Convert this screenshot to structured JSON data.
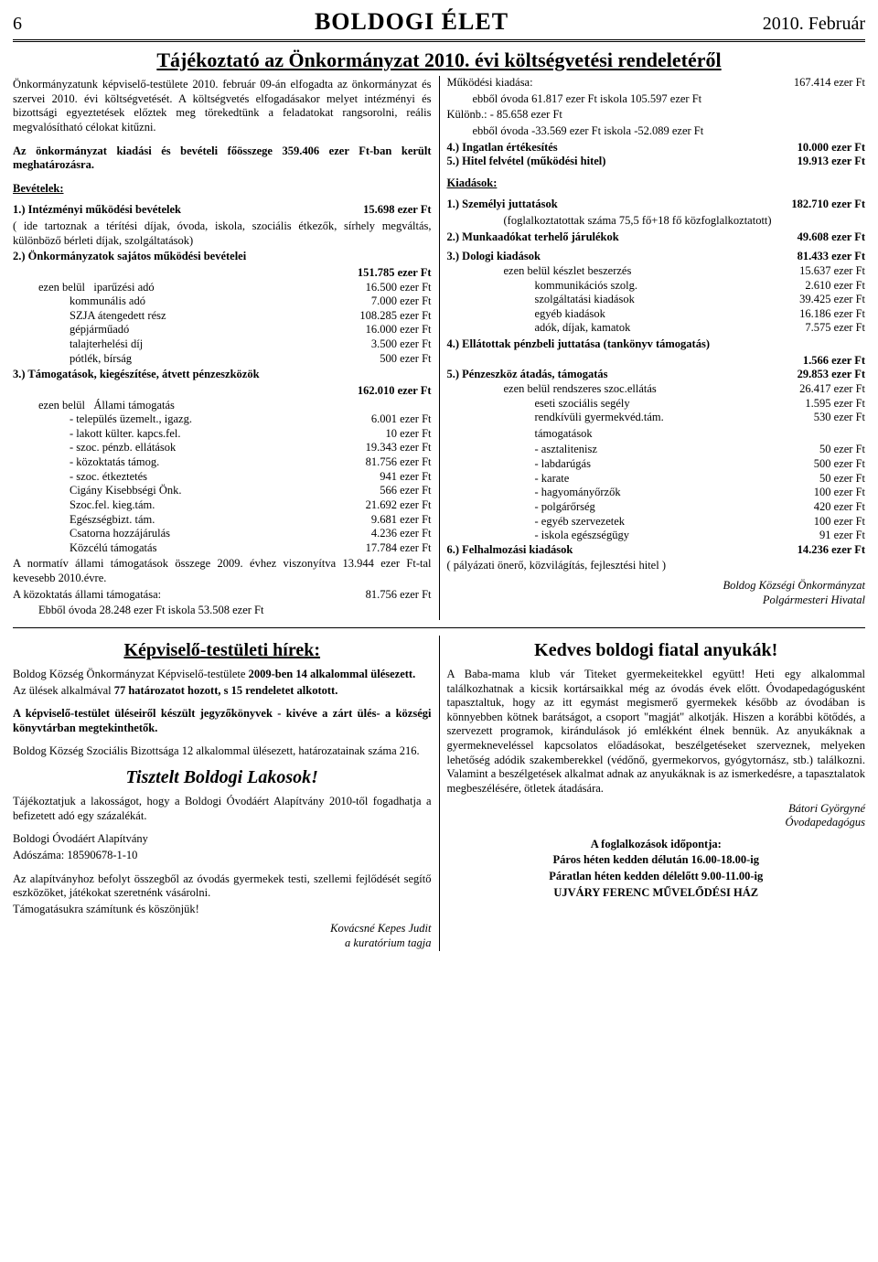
{
  "masthead": {
    "page_number": "6",
    "title": "BOLDOGI ÉLET",
    "date": "2010. Február"
  },
  "article1": {
    "title": "Tájékoztató az Önkormányzat 2010. évi költségvetési rendeletéről",
    "left": {
      "intro": "Önkormányzatunk képviselő-testülete 2010. február 09-án elfogadta az önkormányzat és szervei 2010. évi költségvetését. A költségvetés elfogadásakor melyet intézményi és bizottsági egyeztetések előztek meg törekedtünk a feladatokat rangsorolni, reális megvalósítható célokat kitűzni.",
      "summary": "Az önkormányzat kiadási és bevételi főösszege 359.406 ezer Ft-ban került meghatározásra.",
      "bevetelek_label": "Bevételek:",
      "s1_label": "1.) Intézményi működési bevételek",
      "s1_val": "15.698 ezer Ft",
      "s1_note": "( ide tartoznak a térítési díjak, óvoda, iskola, szociális étkezők, sírhely megváltás, különböző bérleti díjak, szolgáltatások)",
      "s2_label": "2.) Önkormányzatok sajátos működési bevételei",
      "s2_val": "151.785 ezer Ft",
      "s2_ezb": "ezen belül",
      "s2_items": [
        {
          "label": "iparűzési adó",
          "val": "16.500 ezer Ft"
        },
        {
          "label": "kommunális adó",
          "val": "7.000 ezer Ft"
        },
        {
          "label": "SZJA átengedett rész",
          "val": "108.285 ezer Ft"
        },
        {
          "label": "gépjárműadó",
          "val": "16.000 ezer Ft"
        },
        {
          "label": "talajterhelési díj",
          "val": "3.500 ezer Ft"
        },
        {
          "label": "pótlék, bírság",
          "val": "500 ezer Ft"
        }
      ],
      "s3_label": "3.) Támogatások, kiegészítése, átvett pénzeszközök",
      "s3_val": "162.010 ezer Ft",
      "s3_ezb": "ezen belül",
      "s3_allami": "Állami támogatás",
      "s3_items": [
        {
          "label": "- település üzemelt., igazg.",
          "val": "6.001 ezer Ft"
        },
        {
          "label": "- lakott külter. kapcs.fel.",
          "val": "10 ezer Ft"
        },
        {
          "label": "- szoc. pénzb. ellátások",
          "val": "19.343 ezer Ft"
        },
        {
          "label": "- közoktatás támog.",
          "val": "81.756 ezer Ft"
        },
        {
          "label": "- szoc. étkeztetés",
          "val": "941 ezer Ft"
        }
      ],
      "s3_items2": [
        {
          "label": "Cigány Kisebbségi Önk.",
          "val": "566 ezer Ft"
        },
        {
          "label": "Szoc.fel. kieg.tám.",
          "val": "21.692 ezer Ft"
        },
        {
          "label": "Egészségbizt. tám.",
          "val": "9.681 ezer Ft"
        },
        {
          "label": "Csatorna hozzájárulás",
          "val": "4.236 ezer Ft"
        },
        {
          "label": "Közcélú támogatás",
          "val": "17.784 ezer Ft"
        }
      ],
      "tail1": "A normatív állami támogatások összege 2009. évhez viszonyítva 13.944 ezer Ft-tal kevesebb 2010.évre.",
      "tail2_label": "A közoktatás állami támogatása:",
      "tail2_val": "81.756 ezer Ft",
      "tail3": "Ebből óvoda   28.248 ezer Ft      iskola   53.508 ezer Ft"
    },
    "right": {
      "m_label": "Működési kiadása:",
      "m_val": "167.414 ezer Ft",
      "m_line2": "ebből óvoda   61.817 ezer Ft      iskola 105.597 ezer Ft",
      "k_label": "Különb.: - 85.658 ezer Ft",
      "k_line2": "ebből   óvoda -33.569 ezer Ft    iskola  -52.089 ezer Ft",
      "s4_label": "4.) Ingatlan értékesítés",
      "s4_val": "10.000 ezer Ft",
      "s5_label": "5.) Hitel felvétel (működési hitel)",
      "s5_val": "19.913 ezer Ft",
      "kiadasok_label": "Kiadások:",
      "k1_label": "1.) Személyi juttatások",
      "k1_val": "182.710 ezer Ft",
      "k1_note": "(foglalkoztatottak száma 75,5 fő+18 fő közfoglalkoztatott)",
      "k2_label": "2.) Munkaadókat terhelő járulékok",
      "k2_val": "49.608 ezer Ft",
      "k3_label": "3.) Dologi kiadások",
      "k3_val": "81.433 ezer Ft",
      "k3_items": [
        {
          "label": "ezen belül  készlet beszerzés",
          "val": "15.637 ezer Ft"
        },
        {
          "label": "kommunikációs szolg.",
          "val": "2.610 ezer Ft"
        },
        {
          "label": "szolgáltatási kiadások",
          "val": "39.425 ezer Ft"
        },
        {
          "label": "egyéb kiadások",
          "val": "16.186 ezer Ft"
        },
        {
          "label": "adók, díjak, kamatok",
          "val": "7.575 ezer Ft"
        }
      ],
      "k4_label": "4.) Ellátottak pénzbeli juttatása    (tankönyv támogatás)",
      "k4_val": "1.566 ezer Ft",
      "k5_label": "5.) Pénzeszköz átadás, támogatás",
      "k5_val": "29.853 ezer Ft",
      "k5_items": [
        {
          "label": "ezen belül  rendszeres szoc.ellátás",
          "val": "26.417 ezer Ft"
        },
        {
          "label": "eseti szociális segély",
          "val": "1.595 ezer Ft"
        },
        {
          "label": "rendkívüli gyermekvéd.tám.",
          "val": "530 ezer Ft"
        }
      ],
      "k5_tam_label": "támogatások",
      "k5_tam_items": [
        {
          "label": "- asztalitenisz",
          "val": "50 ezer Ft"
        },
        {
          "label": "- labdarúgás",
          "val": "500 ezer Ft"
        },
        {
          "label": "- karate",
          "val": "50 ezer Ft"
        },
        {
          "label": "- hagyományőrzők",
          "val": "100 ezer Ft"
        },
        {
          "label": "- polgárőrség",
          "val": "420 ezer Ft"
        },
        {
          "label": "- egyéb szervezetek",
          "val": "100 ezer Ft"
        },
        {
          "label": "- iskola egészségügy",
          "val": "91 ezer Ft"
        }
      ],
      "k6_label": "6.) Felhalmozási kiadások",
      "k6_val": "14.236 ezer Ft",
      "k6_note": "( pályázati önerő, közvilágítás, fejlesztési hitel )",
      "sig1": "Boldog Községi Önkormányzat",
      "sig2": "Polgármesteri Hivatal"
    }
  },
  "article2": {
    "left": {
      "head": "Képviselő-testületi hírek:",
      "p1a": "Boldog Község Önkormányzat Képviselő-testülete ",
      "p1b": "2009-ben 14 alkalommal ülésezett.",
      "p2a": "Az ülések alkalmával ",
      "p2b": "77 határozatot hozott, s 15 rendeletet alkotott.",
      "p3": "A képviselő-testület üléseiről készült jegyzőkönyvek - kivéve a zárt ülés- a községi könyvtárban megtekinthetők.",
      "p4": "Boldog Község Szociális Bizottsága 12 alkalommal ülésezett, határozatainak száma 216.",
      "head2": "Tisztelt Boldogi Lakosok!",
      "p5": "Tájékoztatjuk a lakosságot, hogy a Boldogi Óvodáért Alapítvány 2010-től fogadhatja a befizetett adó egy százalékát.",
      "p6": "Boldogi Óvodáért Alapítvány",
      "p7": "Adószáma: 18590678-1-10",
      "p8": "Az alapítványhoz befolyt összegből az óvodás gyermekek testi, szellemi fejlődését segítő eszközöket, játékokat szeretnénk vásárolni.",
      "p9": "Támogatásukra számítunk és köszönjük!",
      "sig1": "Kovácsné Kepes Judit",
      "sig2": "a kuratórium tagja"
    },
    "right": {
      "head": "Kedves boldogi fiatal anyukák!",
      "p1": "A Baba-mama klub vár Titeket gyermekeitekkel együtt! Heti egy alkalommal találkozhatnak a kicsik kortársaikkal még az óvodás évek előtt. Óvodapedagógusként tapasztaltuk, hogy az itt egymást megismerő gyermekek később az óvodában is könnyebben kötnek barátságot, a csoport \"magját\" alkotják. Hiszen a korábbi kötődés, a szervezett programok, kirándulások jó emlékként élnek bennük. Az anyukáknak a gyermekneveléssel kapcsolatos előadásokat, beszélgetéseket szerveznek, melyeken lehetőség adódik szakemberekkel (védőnő, gyermekorvos, gyógytornász, stb.) találkozni. Valamint a beszélgetések alkalmat adnak az anyukáknak is az ismerkedésre, a tapasztalatok megbeszélésére, ötletek átadására.",
      "sig1": "Bátori Györgyné",
      "sig2": "Óvodapedagógus",
      "sched_head": "A foglalkozások időpontja:",
      "sched1": "Páros héten kedden délután 16.00-18.00-ig",
      "sched2": "Páratlan héten kedden délelőtt 9.00-11.00-ig",
      "sched3": "UJVÁRY FERENC MŰVELŐDÉSI HÁZ"
    }
  }
}
